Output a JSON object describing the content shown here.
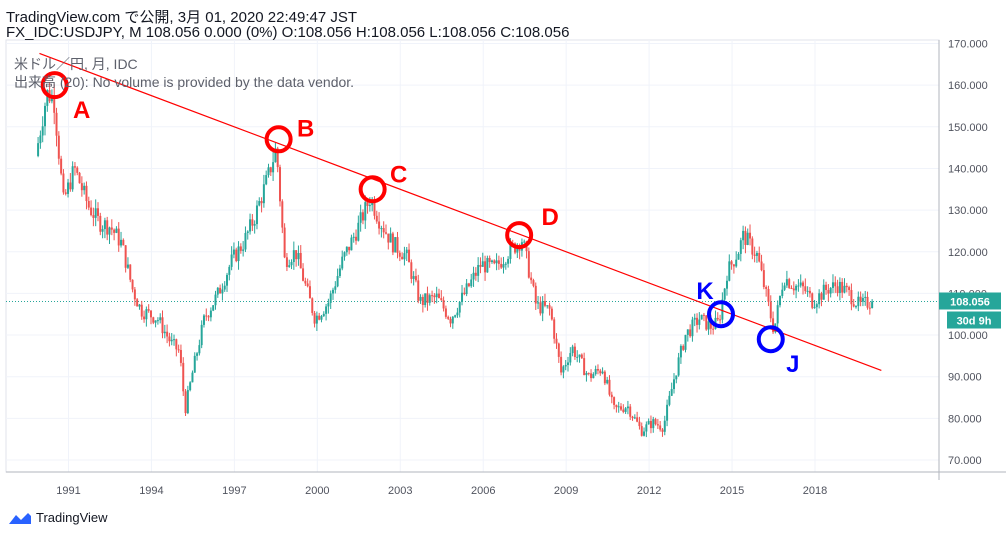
{
  "header": {
    "line1": "TradingView.com で公開, 3月 01, 2020 22:49:47 JST",
    "line2": "FX_IDC:USDJPY, M 108.056 0.000 (0%) O:108.056 H:108.056 L:108.056 C:108.056"
  },
  "legend": {
    "series": "米ドル／円, 月, IDC",
    "volume": "出来高 (20): No volume is provided by the data vendor."
  },
  "price_label": "108.056",
  "countdown_label": "30d 9h",
  "footer": {
    "brand": "TradingView"
  },
  "colors": {
    "up": "#26a69a",
    "down": "#ef5350",
    "trendline": "#ff0000",
    "red_marker": "#ff0000",
    "blue_marker": "#0000ff",
    "price_tag": "#26a69a"
  },
  "chart_data": {
    "type": "candlestick",
    "symbol": "FX_IDC:USDJPY",
    "interval": "M",
    "last_price": 108.056,
    "y_ticks": [
      "170.000",
      "160.000",
      "150.000",
      "140.000",
      "130.000",
      "120.000",
      "110.000",
      "100.000",
      "90.000",
      "80.000",
      "70.000"
    ],
    "x_ticks": [
      "1991",
      "1994",
      "1997",
      "2000",
      "2003",
      "2006",
      "2009",
      "2012",
      "2015",
      "2018"
    ],
    "ylim": [
      67,
      172
    ],
    "xlim": [
      1989.9,
      2020.4
    ],
    "price_path": [
      [
        1989.9,
        143
      ],
      [
        1990.3,
        158
      ],
      [
        1990.55,
        157
      ],
      [
        1990.9,
        132
      ],
      [
        1991.3,
        140
      ],
      [
        1991.8,
        131
      ],
      [
        1992.2,
        127
      ],
      [
        1992.6,
        126
      ],
      [
        1993.0,
        122
      ],
      [
        1993.4,
        111
      ],
      [
        1993.7,
        106
      ],
      [
        1994.3,
        104
      ],
      [
        1994.8,
        98
      ],
      [
        1995.1,
        96
      ],
      [
        1995.3,
        82
      ],
      [
        1995.6,
        92
      ],
      [
        1996.0,
        104
      ],
      [
        1996.5,
        110
      ],
      [
        1997.0,
        118
      ],
      [
        1997.4,
        122
      ],
      [
        1997.8,
        128
      ],
      [
        1998.3,
        138
      ],
      [
        1998.6,
        145
      ],
      [
        1998.9,
        118
      ],
      [
        1999.3,
        120
      ],
      [
        1999.6,
        113
      ],
      [
        2000.0,
        104
      ],
      [
        2000.5,
        108
      ],
      [
        2001.0,
        118
      ],
      [
        2001.5,
        125
      ],
      [
        2002.0,
        133
      ],
      [
        2002.3,
        128
      ],
      [
        2002.8,
        122
      ],
      [
        2003.3,
        119
      ],
      [
        2003.8,
        108
      ],
      [
        2004.4,
        109
      ],
      [
        2004.9,
        104
      ],
      [
        2005.5,
        111
      ],
      [
        2006.0,
        117
      ],
      [
        2006.5,
        116
      ],
      [
        2007.0,
        120
      ],
      [
        2007.5,
        123
      ],
      [
        2008.0,
        107
      ],
      [
        2008.5,
        106
      ],
      [
        2008.9,
        91
      ],
      [
        2009.3,
        97
      ],
      [
        2009.9,
        90
      ],
      [
        2010.4,
        92
      ],
      [
        2010.8,
        82
      ],
      [
        2011.3,
        83
      ],
      [
        2011.8,
        77
      ],
      [
        2012.2,
        79
      ],
      [
        2012.6,
        78
      ],
      [
        2013.0,
        90
      ],
      [
        2013.4,
        100
      ],
      [
        2013.9,
        104
      ],
      [
        2014.3,
        102
      ],
      [
        2014.6,
        103
      ],
      [
        2014.9,
        115
      ],
      [
        2015.3,
        120
      ],
      [
        2015.5,
        124
      ],
      [
        2016.0,
        119
      ],
      [
        2016.3,
        110
      ],
      [
        2016.6,
        101
      ],
      [
        2016.95,
        114
      ],
      [
        2017.3,
        112
      ],
      [
        2017.7,
        111
      ],
      [
        2018.0,
        108
      ],
      [
        2018.5,
        111
      ],
      [
        2018.9,
        112
      ],
      [
        2019.3,
        110
      ],
      [
        2019.7,
        107
      ],
      [
        2020.1,
        108.056
      ]
    ],
    "trendline": {
      "start": [
        1989.95,
        167.6
      ],
      "end": [
        2020.4,
        91.5
      ]
    },
    "annotations": [
      {
        "label": "A",
        "x": 1990.5,
        "y": 160,
        "color": "red"
      },
      {
        "label": "B",
        "x": 1998.6,
        "y": 147,
        "color": "red"
      },
      {
        "label": "C",
        "x": 2002.0,
        "y": 135,
        "color": "red"
      },
      {
        "label": "D",
        "x": 2007.3,
        "y": 124,
        "color": "red"
      },
      {
        "label": "K",
        "x": 2014.6,
        "y": 105,
        "color": "blue"
      },
      {
        "label": "J",
        "x": 2016.4,
        "y": 99,
        "color": "blue"
      }
    ]
  }
}
